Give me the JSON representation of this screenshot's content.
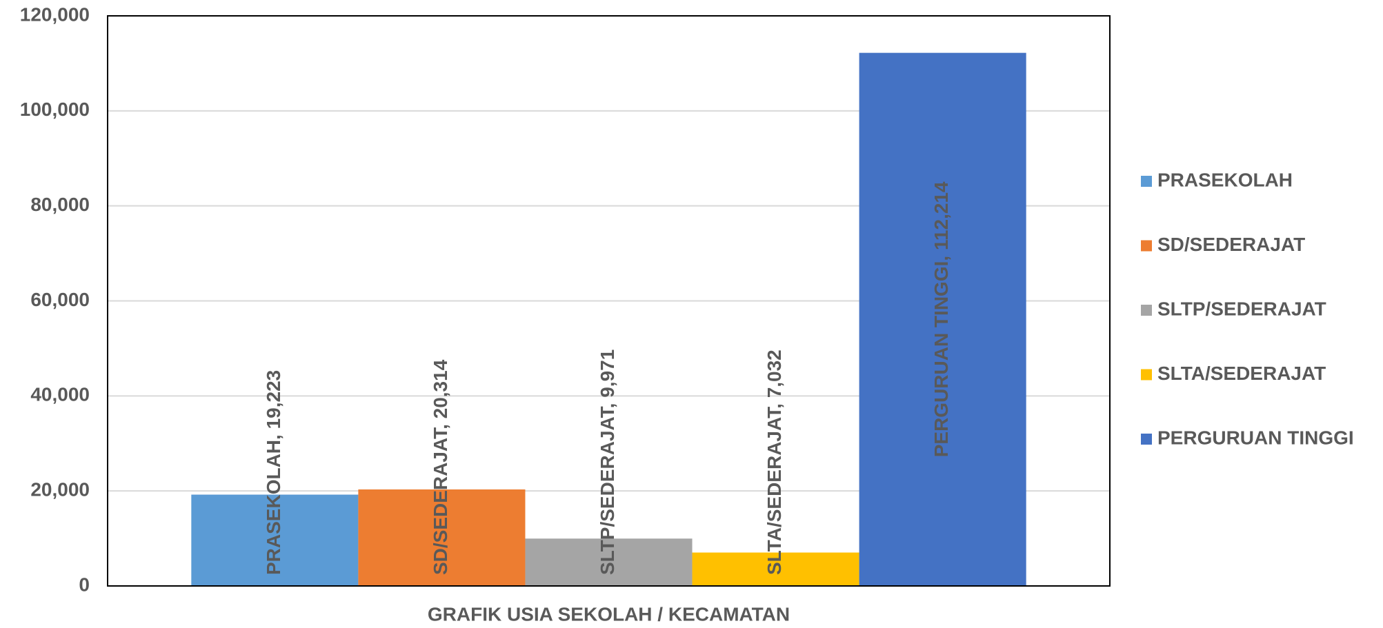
{
  "chart_data": {
    "type": "bar",
    "categories": [
      "GRAFIK USIA SEKOLAH / KECAMATAN"
    ],
    "series": [
      {
        "name": "PRASEKOLAH",
        "color": "#5b9bd5",
        "values": [
          19223
        ],
        "value_labels": [
          "PRASEKOLAH, 19,223"
        ]
      },
      {
        "name": "SD/SEDERAJAT",
        "color": "#ed7d31",
        "values": [
          20314
        ],
        "value_labels": [
          "SD/SEDERAJAT, 20,314"
        ]
      },
      {
        "name": "SLTP/SEDERAJAT",
        "color": "#a5a5a5",
        "values": [
          9971
        ],
        "value_labels": [
          "SLTP/SEDERAJAT, 9,971"
        ]
      },
      {
        "name": "SLTA/SEDERAJAT",
        "color": "#ffc000",
        "values": [
          7032
        ],
        "value_labels": [
          "SLTA/SEDERAJAT, 7,032"
        ]
      },
      {
        "name": "PERGURUAN TINGGI",
        "color": "#4472c4",
        "values": [
          112214
        ],
        "value_labels": [
          "PERGURUAN TINGGI, 112,214"
        ]
      }
    ],
    "ylim": [
      0,
      120000
    ],
    "yticks": [
      0,
      {
        "value": 20000,
        "label": "20,000"
      },
      {
        "value": 40000,
        "label": "40,000"
      },
      {
        "value": 60000,
        "label": "60,000"
      },
      {
        "value": 80000,
        "label": "80,000"
      },
      {
        "value": 100000,
        "label": "100,000"
      },
      {
        "value": 120000,
        "label": "120,000"
      }
    ],
    "grid": true,
    "legend": "right"
  }
}
